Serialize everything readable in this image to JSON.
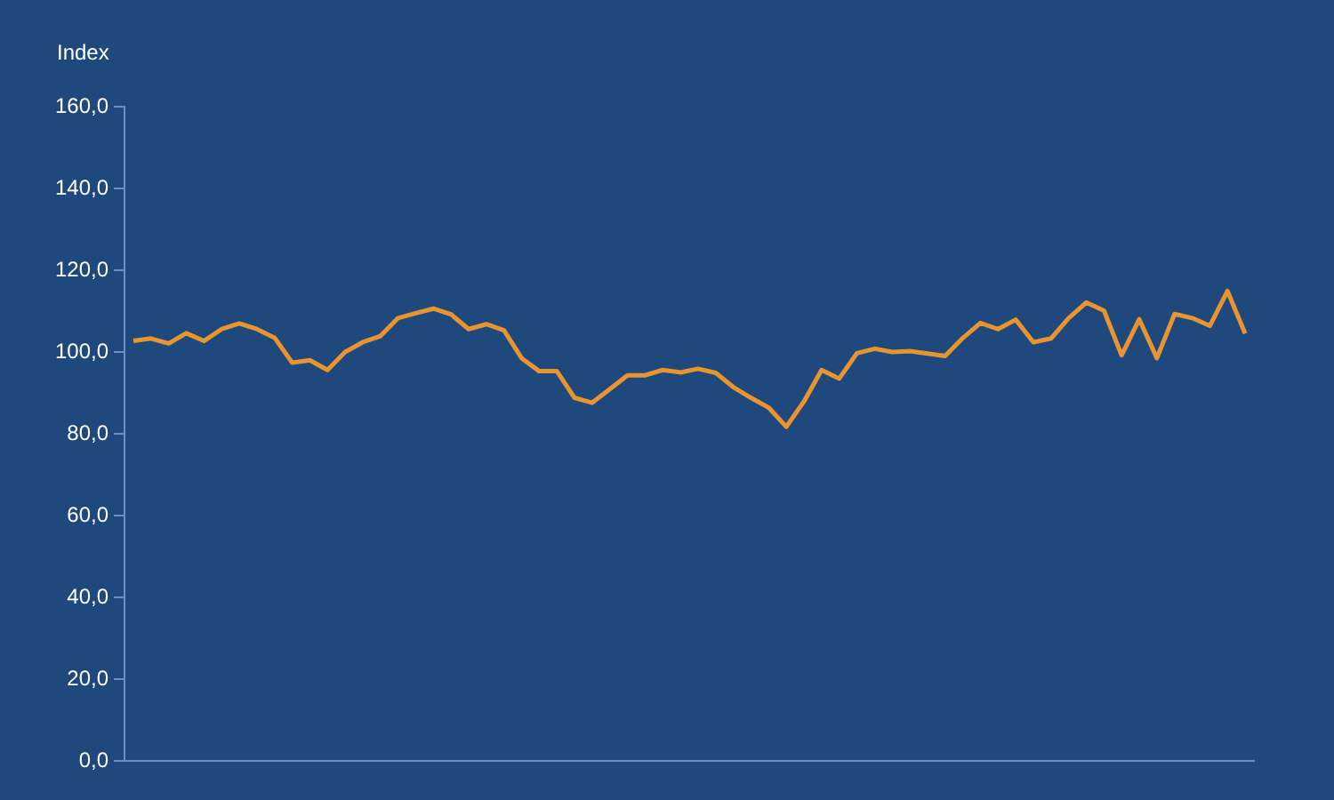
{
  "chart_data": {
    "type": "line",
    "ylabel": "Index",
    "categories": [
      null,
      null,
      null,
      null,
      null,
      null,
      null,
      null,
      null,
      null,
      null,
      null,
      null,
      null,
      null,
      null,
      null,
      null,
      null,
      null,
      null,
      null,
      null,
      null,
      null,
      null,
      null,
      null,
      null,
      null,
      null,
      null,
      null,
      null,
      null,
      null,
      null,
      null,
      null,
      null,
      null,
      null,
      null,
      null,
      null,
      null,
      null,
      null,
      null,
      null,
      null,
      null,
      null,
      null,
      null,
      null,
      null,
      null,
      null,
      null,
      null,
      null,
      null,
      null
    ],
    "series": [
      {
        "color": "#e8952f",
        "values": [
          102.7,
          103.3,
          102.1,
          104.6,
          102.7,
          105.6,
          107.0,
          105.6,
          103.5,
          97.4,
          98.0,
          95.6,
          100.0,
          102.4,
          103.9,
          108.3,
          109.5,
          110.6,
          109.2,
          105.6,
          106.8,
          105.3,
          98.5,
          95.3,
          95.3,
          88.8,
          87.6,
          90.9,
          94.3,
          94.3,
          95.6,
          95.0,
          95.9,
          94.9,
          91.4,
          88.8,
          86.4,
          81.7,
          87.9,
          95.6,
          93.5,
          99.7,
          100.8,
          100.0,
          100.2,
          99.6,
          99.0,
          103.4,
          107.1,
          105.6,
          107.9,
          102.4,
          103.3,
          108.3,
          112.1,
          110.1,
          99.2,
          108.0,
          98.5,
          109.3,
          108.3,
          106.4,
          114.9,
          104.5
        ]
      }
    ],
    "ylim": [
      0,
      160
    ],
    "yticks": [
      {
        "value": 0,
        "label": "0,0"
      },
      {
        "value": 20,
        "label": "20,0"
      },
      {
        "value": 40,
        "label": "40,0"
      },
      {
        "value": 60,
        "label": "60,0"
      },
      {
        "value": 80,
        "label": "80,0"
      },
      {
        "value": 100,
        "label": "100,0"
      },
      {
        "value": 120,
        "label": "120,0"
      },
      {
        "value": 140,
        "label": "140,0"
      },
      {
        "value": 160,
        "label": "160,0"
      }
    ],
    "tick_labels": "y"
  }
}
